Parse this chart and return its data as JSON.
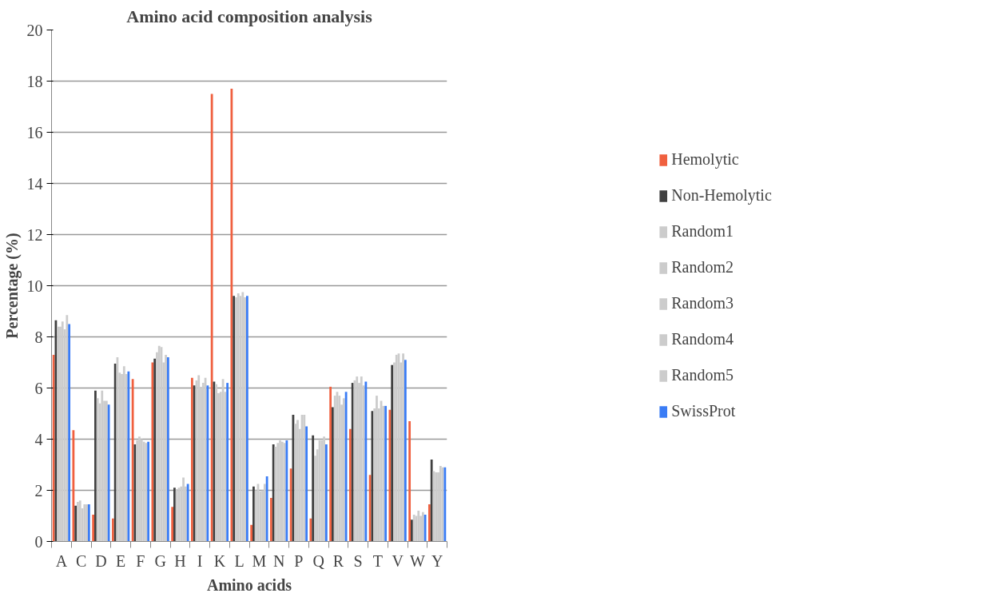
{
  "chart_data": {
    "type": "bar",
    "title": "Amino acid composition analysis",
    "xlabel": "Amino acids",
    "ylabel": "Percentage (%)",
    "categories": [
      "A",
      "C",
      "D",
      "E",
      "F",
      "G",
      "H",
      "I",
      "K",
      "L",
      "M",
      "N",
      "P",
      "Q",
      "R",
      "S",
      "T",
      "V",
      "W",
      "Y"
    ],
    "series": [
      {
        "name": "Hemolytic",
        "color": "#f0603f",
        "values": [
          7.3,
          4.35,
          1.05,
          0.9,
          6.35,
          7.0,
          1.35,
          6.4,
          17.5,
          17.7,
          0.65,
          1.7,
          2.85,
          0.9,
          6.05,
          4.4,
          2.6,
          5.15,
          4.7,
          1.45
        ]
      },
      {
        "name": "Non-Hemolytic",
        "color": "#404040",
        "values": [
          8.65,
          1.4,
          5.9,
          6.95,
          3.8,
          7.15,
          2.1,
          6.1,
          6.25,
          9.6,
          2.15,
          3.8,
          4.95,
          4.15,
          5.25,
          6.2,
          5.1,
          6.9,
          0.85,
          3.2
        ]
      },
      {
        "name": "Random1",
        "color": "#cccccc",
        "values": [
          8.4,
          1.55,
          5.6,
          7.2,
          3.95,
          7.4,
          2.05,
          6.3,
          6.15,
          9.55,
          2.0,
          3.7,
          4.6,
          3.35,
          5.7,
          6.3,
          5.2,
          7.0,
          1.05,
          2.75
        ]
      },
      {
        "name": "Random2",
        "color": "#cccccc",
        "values": [
          8.4,
          1.6,
          5.4,
          6.6,
          4.1,
          7.65,
          2.1,
          6.5,
          5.8,
          9.7,
          2.25,
          3.85,
          4.75,
          3.6,
          5.85,
          6.45,
          5.7,
          7.3,
          1.0,
          2.7
        ]
      },
      {
        "name": "Random3",
        "color": "#cccccc",
        "values": [
          8.6,
          1.3,
          5.9,
          6.55,
          4.0,
          7.6,
          2.15,
          6.05,
          5.85,
          9.6,
          1.95,
          3.95,
          4.4,
          3.95,
          5.7,
          6.2,
          5.2,
          7.35,
          1.2,
          2.7
        ]
      },
      {
        "name": "Random4",
        "color": "#cccccc",
        "values": [
          8.3,
          1.45,
          5.5,
          6.85,
          3.9,
          7.0,
          2.5,
          6.2,
          6.35,
          9.75,
          2.0,
          3.9,
          4.95,
          3.95,
          5.35,
          6.45,
          5.5,
          7.0,
          1.0,
          2.95
        ]
      },
      {
        "name": "Random5",
        "color": "#cccccc",
        "values": [
          8.85,
          1.45,
          5.5,
          6.55,
          3.85,
          7.3,
          2.15,
          6.4,
          5.85,
          9.55,
          2.25,
          3.85,
          4.95,
          4.1,
          5.6,
          6.1,
          5.3,
          7.35,
          1.15,
          2.9
        ]
      },
      {
        "name": "SwissProt",
        "color": "#3a7cf5",
        "values": [
          8.5,
          1.45,
          5.35,
          6.65,
          3.9,
          7.2,
          2.25,
          6.1,
          6.2,
          9.6,
          2.55,
          3.95,
          4.5,
          3.8,
          5.85,
          6.25,
          5.3,
          7.1,
          1.05,
          2.9
        ]
      }
    ],
    "ylim": [
      0,
      20
    ],
    "yticks": [
      0,
      2,
      4,
      6,
      8,
      10,
      12,
      14,
      16,
      18,
      20
    ],
    "grid": "y",
    "legend": "right"
  }
}
